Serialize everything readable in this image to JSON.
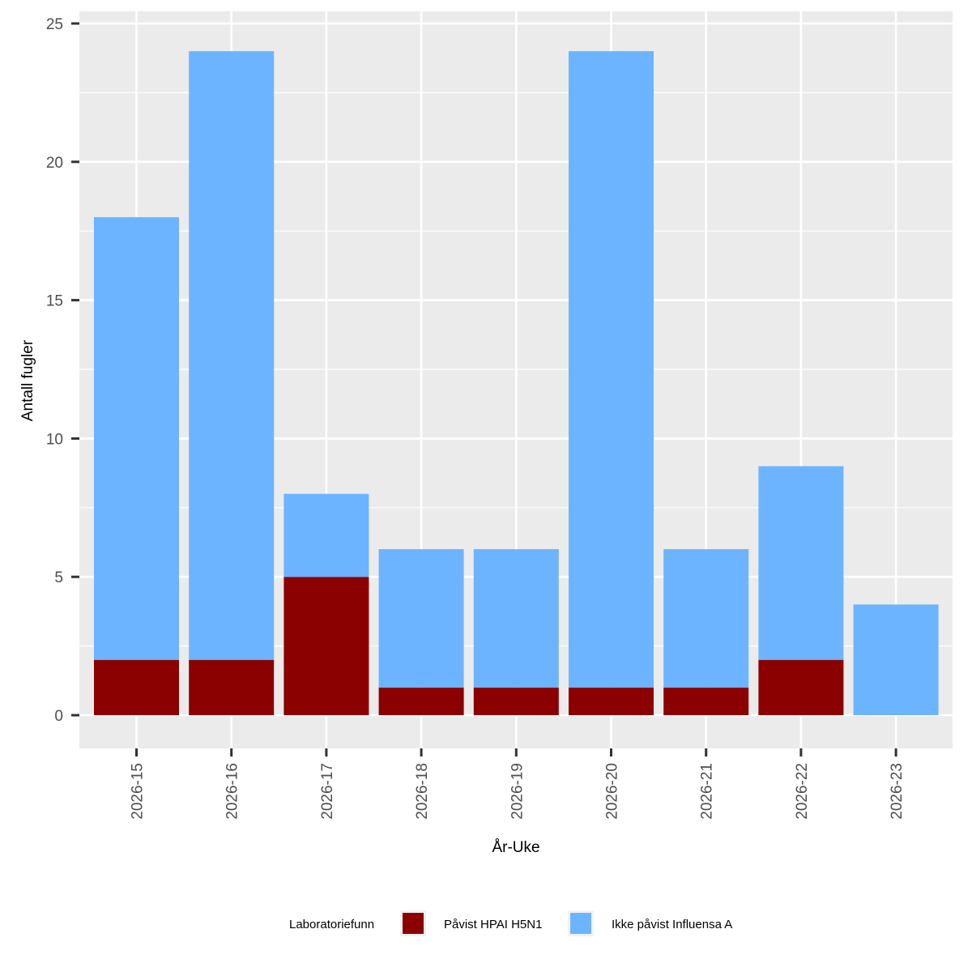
{
  "chart_data": {
    "type": "bar",
    "stacked": true,
    "xlabel": "År-Uke",
    "ylabel": "Antall fugler",
    "ylim": [
      0,
      25
    ],
    "yticks": [
      0,
      5,
      10,
      15,
      20,
      25
    ],
    "grid": true,
    "legend_position": "bottom",
    "categories": [
      "2026-15",
      "2026-16",
      "2026-17",
      "2026-18",
      "2026-19",
      "2026-20",
      "2026-21",
      "2026-22",
      "2026-23"
    ],
    "series": [
      {
        "name": "Påvist HPAI H5N1",
        "color": "#8B0000",
        "values": [
          2,
          2,
          5,
          1,
          1,
          1,
          1,
          2,
          0
        ]
      },
      {
        "name": "Ikke påvist Influensa A",
        "color": "#6CB4FF",
        "values": [
          16,
          22,
          3,
          5,
          5,
          23,
          5,
          7,
          4
        ]
      }
    ],
    "legend_title": "Laboratoriefunn",
    "colors": {
      "panel": "#EBEBEB",
      "grid": "#FFFFFF",
      "tick": "#333333",
      "text": "#4D4D4D"
    }
  }
}
